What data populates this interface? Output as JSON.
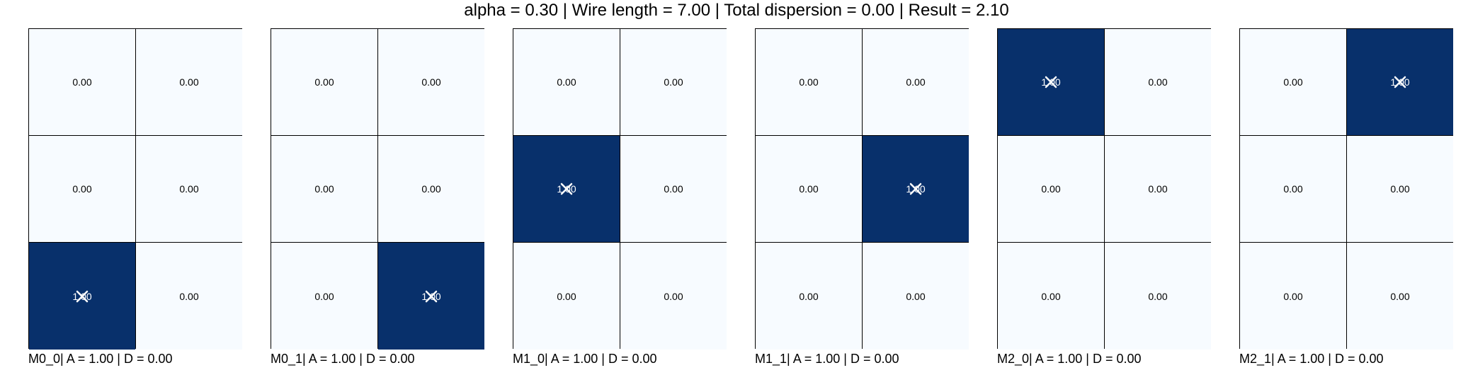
{
  "title": "alpha = 0.30 | Wire length = 7.00 | Total dispersion = 0.00 | Result = 2.10",
  "colors": {
    "low": "#f7fbff",
    "high": "#08306b",
    "marker": "#ffffff"
  },
  "chart_data": {
    "type": "heatmap",
    "grid_shape": [
      3,
      2
    ],
    "marker": "x",
    "colormap": "Blues",
    "panels": [
      {
        "caption": "M0_0| A = 1.00 | D = 0.00",
        "values": [
          [
            0.0,
            0.0
          ],
          [
            0.0,
            0.0
          ],
          [
            1.0,
            0.0
          ]
        ],
        "labels": [
          [
            "0.00",
            "0.00"
          ],
          [
            "0.00",
            "0.00"
          ],
          [
            "1.00",
            "0.00"
          ]
        ],
        "marked_cell": [
          2,
          0
        ]
      },
      {
        "caption": "M0_1| A = 1.00 | D = 0.00",
        "values": [
          [
            0.0,
            0.0
          ],
          [
            0.0,
            0.0
          ],
          [
            0.0,
            1.0
          ]
        ],
        "labels": [
          [
            "0.00",
            "0.00"
          ],
          [
            "0.00",
            "0.00"
          ],
          [
            "0.00",
            "1.00"
          ]
        ],
        "marked_cell": [
          2,
          1
        ]
      },
      {
        "caption": "M1_0| A = 1.00 | D = 0.00",
        "values": [
          [
            0.0,
            0.0
          ],
          [
            1.0,
            0.0
          ],
          [
            0.0,
            0.0
          ]
        ],
        "labels": [
          [
            "0.00",
            "0.00"
          ],
          [
            "1.00",
            "0.00"
          ],
          [
            "0.00",
            "0.00"
          ]
        ],
        "marked_cell": [
          1,
          0
        ]
      },
      {
        "caption": "M1_1| A = 1.00 | D = 0.00",
        "values": [
          [
            0.0,
            0.0
          ],
          [
            0.0,
            1.0
          ],
          [
            0.0,
            0.0
          ]
        ],
        "labels": [
          [
            "0.00",
            "0.00"
          ],
          [
            "0.00",
            "1.00"
          ],
          [
            "0.00",
            "0.00"
          ]
        ],
        "marked_cell": [
          1,
          1
        ]
      },
      {
        "caption": "M2_0| A = 1.00 | D = 0.00",
        "values": [
          [
            1.0,
            0.0
          ],
          [
            0.0,
            0.0
          ],
          [
            0.0,
            0.0
          ]
        ],
        "labels": [
          [
            "1.00",
            "0.00"
          ],
          [
            "0.00",
            "0.00"
          ],
          [
            "0.00",
            "0.00"
          ]
        ],
        "marked_cell": [
          0,
          0
        ]
      },
      {
        "caption": "M2_1| A = 1.00 | D = 0.00",
        "values": [
          [
            0.0,
            1.0
          ],
          [
            0.0,
            0.0
          ],
          [
            0.0,
            0.0
          ]
        ],
        "labels": [
          [
            "0.00",
            "1.00"
          ],
          [
            "0.00",
            "0.00"
          ],
          [
            "0.00",
            "0.00"
          ]
        ],
        "marked_cell": [
          0,
          1
        ]
      }
    ]
  }
}
